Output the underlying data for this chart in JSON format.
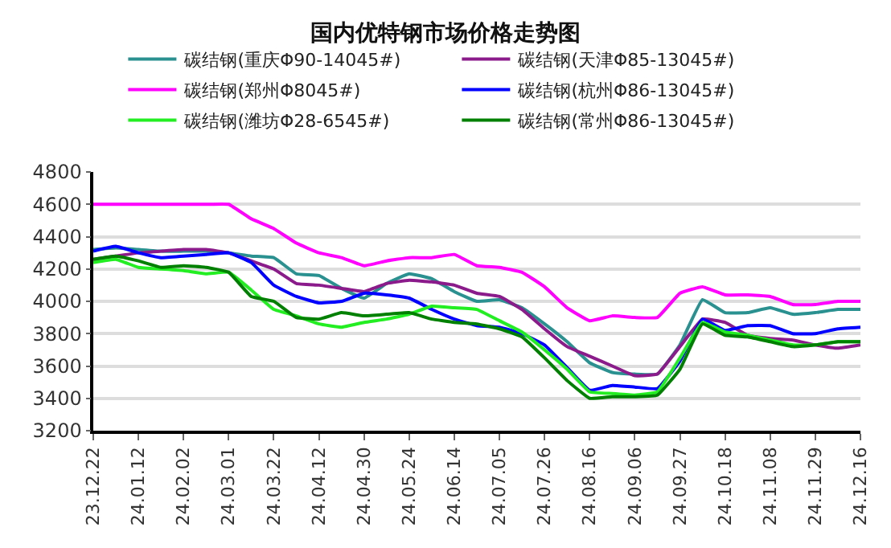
{
  "chart_data": {
    "type": "line",
    "title": "国内优特钢市场价格走势图",
    "categories": [
      "23.12.22",
      null,
      "24.01.12",
      null,
      "24.02.02",
      null,
      "24.03.01",
      null,
      "24.03.22",
      null,
      "24.04.12",
      null,
      "24.04.30",
      null,
      "24.05.24",
      null,
      "24.06.14",
      null,
      "24.07.05",
      null,
      "24.07.26",
      null,
      "24.08.16",
      null,
      "24.09.06",
      null,
      "24.09.27",
      null,
      "24.10.18",
      null,
      "24.11.08",
      null,
      "24.11.29",
      null,
      "24.12.16"
    ],
    "ylim": [
      3200,
      4800
    ],
    "yticks": [
      3200,
      3400,
      3600,
      3800,
      4000,
      4200,
      4400,
      4600,
      4800
    ],
    "grid": "y",
    "legend": "top",
    "marker": "none",
    "line_style": "solid",
    "series": [
      {
        "name": "碳结钢(重庆Φ90-14045#)",
        "color": "#2a9090",
        "values": [
          4320,
          4330,
          4320,
          4310,
          4310,
          4310,
          4300,
          4280,
          4270,
          4170,
          4160,
          4080,
          4020,
          4110,
          4170,
          4140,
          4060,
          4000,
          4010,
          3960,
          3860,
          3750,
          3620,
          3560,
          3550,
          3550,
          3730,
          4010,
          3930,
          3930,
          3960,
          3920,
          3930,
          3950,
          3950
        ]
      },
      {
        "name": "碳结钢(天津Φ85-13045#)",
        "color": "#8b1a8b",
        "values": [
          4260,
          4280,
          4300,
          4310,
          4320,
          4320,
          4300,
          4250,
          4200,
          4110,
          4100,
          4080,
          4060,
          4110,
          4130,
          4120,
          4100,
          4050,
          4030,
          3950,
          3830,
          3720,
          3660,
          3600,
          3540,
          3550,
          3720,
          3890,
          3870,
          3790,
          3770,
          3760,
          3730,
          3710,
          3730
        ]
      },
      {
        "name": "碳结钢(郑州Φ8045#)",
        "color": "#ff00ff",
        "values": [
          4600,
          4600,
          4600,
          4600,
          4600,
          4600,
          4600,
          4510,
          4450,
          4360,
          4300,
          4270,
          4220,
          4250,
          4270,
          4270,
          4290,
          4220,
          4210,
          4180,
          4090,
          3960,
          3880,
          3910,
          3900,
          3900,
          4050,
          4090,
          4040,
          4040,
          4030,
          3980,
          3980,
          4000,
          4000
        ]
      },
      {
        "name": "碳结钢(杭州Φ86-13045#)",
        "color": "#0000ff",
        "values": [
          4310,
          4340,
          4300,
          4270,
          4280,
          4290,
          4300,
          4240,
          4100,
          4030,
          3990,
          4000,
          4050,
          4040,
          4020,
          3950,
          3890,
          3850,
          3840,
          3800,
          3730,
          3590,
          3450,
          3480,
          3470,
          3460,
          3630,
          3890,
          3820,
          3850,
          3850,
          3800,
          3800,
          3830,
          3840
        ]
      },
      {
        "name": "碳结钢(潍坊Φ28-6545#)",
        "color": "#22ee22",
        "values": [
          4240,
          4260,
          4210,
          4200,
          4190,
          4170,
          4180,
          4070,
          3950,
          3910,
          3860,
          3840,
          3870,
          3890,
          3920,
          3970,
          3960,
          3950,
          3880,
          3810,
          3700,
          3580,
          3440,
          3430,
          3420,
          3440,
          3650,
          3870,
          3810,
          3790,
          3760,
          3730,
          3730,
          3750,
          3750
        ]
      },
      {
        "name": "碳结钢(常州Φ86-13045#)",
        "color": "#008000",
        "values": [
          4260,
          4280,
          4250,
          4210,
          4220,
          4210,
          4180,
          4030,
          4000,
          3900,
          3890,
          3930,
          3910,
          3920,
          3930,
          3890,
          3870,
          3860,
          3830,
          3780,
          3650,
          3510,
          3400,
          3410,
          3410,
          3420,
          3580,
          3860,
          3790,
          3780,
          3750,
          3720,
          3730,
          3750,
          3750
        ]
      }
    ]
  }
}
